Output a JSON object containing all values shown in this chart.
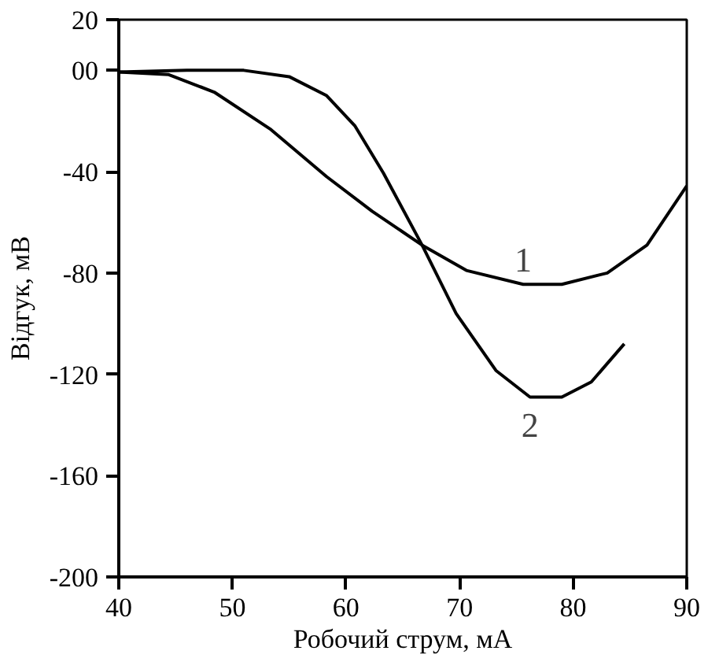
{
  "chart_data": {
    "type": "line",
    "xlabel": "Робочий струм, мА",
    "ylabel": "Відгук, мВ",
    "xlim": [
      40,
      90
    ],
    "ylim": [
      -200,
      20
    ],
    "xticks": [
      40,
      50,
      60,
      70,
      80,
      90
    ],
    "yticks": [
      20,
      {
        "value": 0,
        "label": "00"
      },
      -40,
      -80,
      -120,
      -160,
      -200
    ],
    "grid": false,
    "marker": "none",
    "line_style": "solid",
    "series": [
      {
        "name": "1",
        "color": "#000000",
        "x": [
          40,
          44.4,
          48.4,
          53.4,
          58.3,
          62.3,
          66.7,
          70.6,
          75.6,
          79,
          83,
          86.5,
          90
        ],
        "values": [
          -0.7,
          -1.7,
          -8.6,
          -23.4,
          -42,
          -55.6,
          -69,
          -79,
          -84.5,
          -84.5,
          -80,
          -69,
          -45.6
        ]
      },
      {
        "name": "2",
        "color": "#000000",
        "x": [
          40,
          46,
          51,
          55,
          58.3,
          60.8,
          63.3,
          66.7,
          69.7,
          73.2,
          76.2,
          79,
          81.6,
          84.5
        ],
        "values": [
          -0.7,
          0,
          0,
          -2.5,
          -10,
          -22,
          -40.6,
          -69,
          -96,
          -118.5,
          -129,
          -129,
          -123,
          -108
        ]
      }
    ]
  }
}
